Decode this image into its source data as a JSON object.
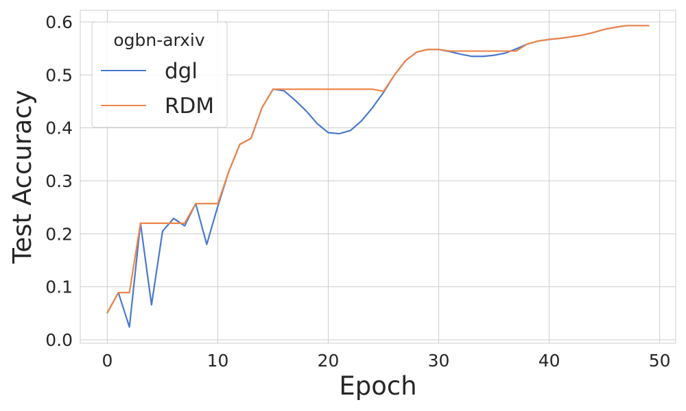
{
  "chart_data": {
    "type": "line",
    "xlabel": "Epoch",
    "ylabel": "Test Accuracy",
    "xlim": [
      -2.45,
      51.45
    ],
    "ylim": [
      -0.0065,
      0.622
    ],
    "xticks": [
      0,
      10,
      20,
      30,
      40,
      50
    ],
    "yticks": [
      0.0,
      0.1,
      0.2,
      0.3,
      0.4,
      0.5,
      0.6
    ],
    "xtick_labels": [
      "0",
      "10",
      "20",
      "30",
      "40",
      "50"
    ],
    "ytick_labels": [
      "0.0",
      "0.1",
      "0.2",
      "0.3",
      "0.4",
      "0.5",
      "0.6"
    ],
    "grid": true,
    "legend": {
      "title": "ogbn-arxiv",
      "placement": "top-left"
    },
    "x": [
      0,
      1,
      2,
      3,
      4,
      5,
      6,
      7,
      8,
      9,
      10,
      11,
      12,
      13,
      14,
      15,
      16,
      17,
      18,
      19,
      20,
      21,
      22,
      23,
      24,
      25,
      26,
      27,
      28,
      29,
      30,
      31,
      32,
      33,
      34,
      35,
      36,
      37,
      38,
      39,
      40,
      41,
      42,
      43,
      44,
      45,
      46,
      47,
      48,
      49
    ],
    "series": [
      {
        "name": "dgl",
        "color": "#4878d0",
        "values": [
          0.051,
          0.089,
          0.024,
          0.22,
          0.066,
          0.205,
          0.229,
          0.215,
          0.257,
          0.18,
          0.252,
          0.318,
          0.369,
          0.38,
          0.438,
          0.473,
          0.47,
          0.452,
          0.432,
          0.408,
          0.391,
          0.389,
          0.395,
          0.413,
          0.438,
          0.467,
          0.5,
          0.527,
          0.543,
          0.548,
          0.548,
          0.544,
          0.539,
          0.535,
          0.535,
          0.537,
          0.541,
          0.549,
          0.558,
          0.564,
          0.567,
          0.569,
          0.572,
          0.575,
          0.58,
          0.586,
          0.59,
          0.593,
          0.593,
          0.593
        ]
      },
      {
        "name": "RDM",
        "color": "#ee854a",
        "values": [
          0.051,
          0.089,
          0.089,
          0.22,
          0.22,
          0.22,
          0.22,
          0.22,
          0.257,
          0.257,
          0.257,
          0.318,
          0.369,
          0.38,
          0.438,
          0.473,
          0.473,
          0.473,
          0.473,
          0.473,
          0.473,
          0.473,
          0.473,
          0.473,
          0.473,
          0.469,
          0.5,
          0.527,
          0.543,
          0.548,
          0.548,
          0.545,
          0.545,
          0.545,
          0.545,
          0.545,
          0.545,
          0.545,
          0.558,
          0.564,
          0.567,
          0.569,
          0.572,
          0.575,
          0.58,
          0.586,
          0.59,
          0.593,
          0.593,
          0.593
        ]
      }
    ]
  }
}
